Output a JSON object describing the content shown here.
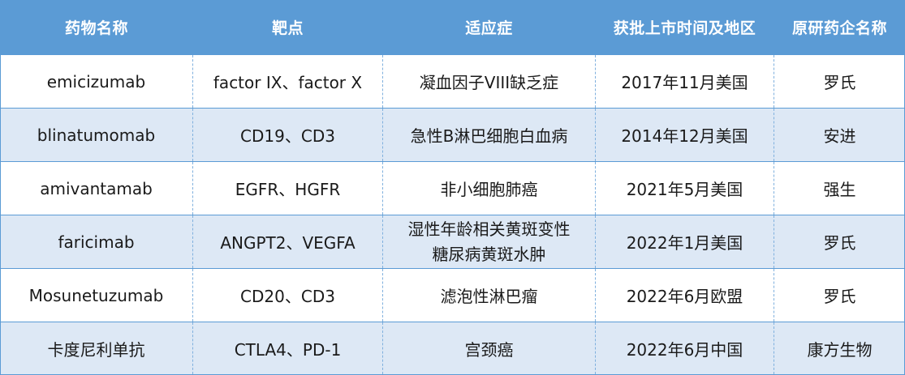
{
  "table": {
    "headers": [
      "药物名称",
      "靶点",
      "适应症",
      "获批上市时间及地区",
      "原研药企名称"
    ],
    "rows": [
      {
        "drug": "emicizumab",
        "target": "factor IX、factor X",
        "indication": [
          "凝血因子VIII缺乏症"
        ],
        "approval": "2017年11月美国",
        "company": "罗氏"
      },
      {
        "drug": "blinatumomab",
        "target": "CD19、CD3",
        "indication": [
          "急性B淋巴细胞白血病"
        ],
        "approval": "2014年12月美国",
        "company": "安进"
      },
      {
        "drug": "amivantamab",
        "target": "EGFR、HGFR",
        "indication": [
          "非小细胞肺癌"
        ],
        "approval": "2021年5月美国",
        "company": "强生"
      },
      {
        "drug": "faricimab",
        "target": "ANGPT2、VEGFA",
        "indication": [
          "湿性年龄相关黄斑变性",
          "糖尿病黄斑水肿"
        ],
        "approval": "2022年1月美国",
        "company": "罗氏"
      },
      {
        "drug": "Mosunetuzumab",
        "target": "CD20、CD3",
        "indication": [
          "滤泡性淋巴瘤"
        ],
        "approval": "2022年6月欧盟",
        "company": "罗氏"
      },
      {
        "drug": "卡度尼利单抗",
        "target": "CTLA4、PD-1",
        "indication": [
          "宫颈癌"
        ],
        "approval": "2022年6月中国",
        "company": "康方生物"
      }
    ]
  },
  "colors": {
    "header_bg": "#5b9bd5",
    "alt_row_bg": "#dde8f5",
    "border": "#5b9bd5"
  }
}
